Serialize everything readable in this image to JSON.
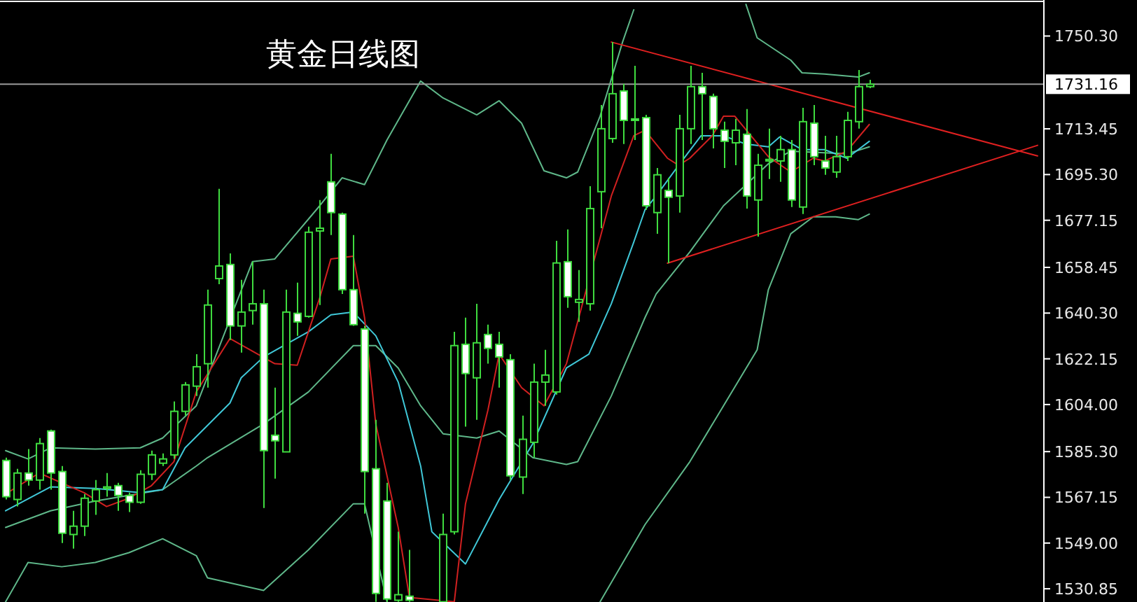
{
  "chart_data": {
    "type": "candlestick",
    "title": "黄金日线图",
    "color": "#3fdc3f",
    "tick_labels": "y",
    "categories": [
      null,
      null,
      null,
      null,
      null,
      null,
      null,
      null,
      null,
      null,
      null,
      null,
      null,
      null,
      null,
      null,
      null,
      null,
      null,
      null,
      null,
      null,
      null,
      null,
      null,
      null,
      null,
      null,
      null,
      null,
      null,
      null,
      null,
      null,
      null,
      null,
      null,
      null,
      null,
      null,
      null,
      null,
      null,
      null,
      null,
      null,
      null,
      null,
      null,
      null,
      null,
      null,
      null,
      null,
      null,
      null,
      null,
      null,
      null,
      null,
      null,
      null,
      null,
      null,
      null,
      null,
      null,
      null,
      null,
      null,
      null,
      null,
      null,
      null,
      null,
      null,
      null,
      null,
      null,
      null,
      null,
      null,
      null,
      null,
      null,
      null,
      null,
      null,
      null,
      null,
      null,
      null,
      null
    ],
    "ohlc": [
      [
        1581.8,
        1582.9,
        1566.3,
        1567.4
      ],
      [
        1566.3,
        1578.5,
        1563.5,
        1576.8
      ],
      [
        1576.8,
        1586.3,
        1571.8,
        1574.0
      ],
      [
        1574.0,
        1590.7,
        1570.2,
        1588.5
      ],
      [
        1593.5,
        1594.0,
        1570.2,
        1576.8
      ],
      [
        1577.4,
        1579.6,
        1549.0,
        1552.9
      ],
      [
        1552.4,
        1561.8,
        1546.8,
        1555.7
      ],
      [
        1555.7,
        1568.5,
        1551.8,
        1566.8
      ],
      [
        1565.7,
        1574.0,
        1560.2,
        1570.2
      ],
      [
        1570.7,
        1576.8,
        1567.4,
        1571.3
      ],
      [
        1571.8,
        1572.9,
        1561.8,
        1567.9
      ],
      [
        1567.9,
        1569.0,
        1561.3,
        1565.2
      ],
      [
        1565.2,
        1577.9,
        1564.6,
        1576.3
      ],
      [
        1576.3,
        1585.7,
        1574.0,
        1584.0
      ],
      [
        1580.7,
        1584.6,
        1579.6,
        1582.4
      ],
      [
        1584.0,
        1605.2,
        1582.4,
        1601.3
      ],
      [
        1601.3,
        1612.9,
        1599.6,
        1611.8
      ],
      [
        1611.3,
        1624.0,
        1607.4,
        1619.0
      ],
      [
        1620.2,
        1649.6,
        1610.7,
        1643.5
      ],
      [
        1654.0,
        1689.6,
        1651.8,
        1659.0
      ],
      [
        1659.6,
        1664.0,
        1629.6,
        1635.2
      ],
      [
        1635.2,
        1653.5,
        1624.6,
        1640.7
      ],
      [
        1641.3,
        1660.7,
        1635.7,
        1644.0
      ],
      [
        1644.0,
        1649.6,
        1562.9,
        1585.7
      ],
      [
        1591.8,
        1610.7,
        1574.6,
        1589.6
      ],
      [
        1585.2,
        1649.6,
        1585.2,
        1640.7
      ],
      [
        1640.2,
        1652.4,
        1631.3,
        1636.8
      ],
      [
        1639.0,
        1674.6,
        1638.5,
        1672.4
      ],
      [
        1672.9,
        1685.2,
        1643.5,
        1674.0
      ],
      [
        1692.4,
        1703.5,
        1671.3,
        1680.2
      ],
      [
        1679.6,
        1680.2,
        1647.9,
        1649.6
      ],
      [
        1649.6,
        1671.3,
        1635.2,
        1635.7
      ],
      [
        1634.0,
        1635.2,
        1560.7,
        1577.4
      ],
      [
        1578.5,
        1597.9,
        1525.7,
        1529.0
      ],
      [
        1565.7,
        1572.9,
        1525.7,
        1526.8
      ],
      [
        1526.3,
        1553.5,
        1525.7,
        1528.5
      ],
      [
        1527.9,
        1546.3,
        1525.7,
        1526.3
      ],
      null,
      null,
      [
        1525.7,
        1560.7,
        1525.7,
        1552.4
      ],
      [
        1553.5,
        1632.9,
        1552.4,
        1627.4
      ],
      [
        1627.9,
        1638.5,
        1595.2,
        1616.3
      ],
      [
        1614.6,
        1644.0,
        1597.9,
        1628.5
      ],
      [
        1631.8,
        1635.7,
        1620.2,
        1626.3
      ],
      [
        1627.9,
        1632.9,
        1610.7,
        1622.9
      ],
      [
        1621.8,
        1624.0,
        1574.0,
        1575.7
      ],
      [
        1575.2,
        1599.6,
        1568.5,
        1590.2
      ],
      [
        1589.0,
        1620.2,
        1582.9,
        1612.9
      ],
      [
        1612.9,
        1625.7,
        1603.5,
        1615.7
      ],
      [
        1609.0,
        1669.0,
        1607.9,
        1660.2
      ],
      [
        1660.7,
        1673.5,
        1642.4,
        1646.8
      ],
      [
        1644.6,
        1657.4,
        1636.8,
        1645.7
      ],
      [
        1644.0,
        1690.7,
        1641.3,
        1681.8
      ],
      [
        1688.5,
        1722.9,
        1674.0,
        1713.5
      ],
      [
        1709.6,
        1747.9,
        1707.9,
        1727.4
      ],
      [
        1728.5,
        1731.3,
        1707.4,
        1716.8
      ],
      [
        1717.4,
        1738.5,
        1709.0,
        1716.8
      ],
      [
        1717.9,
        1719.0,
        1681.3,
        1682.9
      ],
      [
        1680.2,
        1697.9,
        1671.8,
        1695.2
      ],
      [
        1689.0,
        1694.0,
        1660.1,
        1686.3
      ],
      [
        1686.8,
        1719.0,
        1680.2,
        1713.5
      ],
      [
        1713.5,
        1738.5,
        1707.4,
        1730.2
      ],
      [
        1730.2,
        1735.7,
        1709.0,
        1727.4
      ],
      [
        1726.3,
        1727.4,
        1705.7,
        1713.5
      ],
      [
        1712.9,
        1716.3,
        1697.9,
        1708.5
      ],
      [
        1707.9,
        1717.4,
        1699.0,
        1712.9
      ],
      [
        1711.3,
        1721.3,
        1681.8,
        1686.8
      ],
      [
        1685.2,
        1703.5,
        1670.7,
        1699.0
      ],
      [
        1700.7,
        1713.5,
        1693.5,
        1701.3
      ],
      [
        1700.7,
        1710.7,
        1692.4,
        1705.2
      ],
      [
        1705.2,
        1709.0,
        1682.4,
        1685.2
      ],
      [
        1682.4,
        1721.8,
        1679.6,
        1716.3
      ],
      [
        1715.7,
        1722.9,
        1699.0,
        1702.4
      ],
      [
        1700.7,
        1710.7,
        1695.2,
        1697.9
      ],
      [
        1696.3,
        1710.7,
        1694.0,
        1702.4
      ],
      [
        1702.4,
        1720.2,
        1700.7,
        1716.8
      ],
      [
        1716.3,
        1736.8,
        1713.5,
        1730.2
      ],
      [
        1730.2,
        1732.9,
        1729.6,
        1731.16
      ],
      null,
      null,
      null,
      null,
      null,
      null,
      null,
      null,
      null,
      null,
      null,
      null,
      null,
      null,
      null
    ],
    "series": [
      {
        "type": "line",
        "color": "#5fb88a",
        "values": [
          1585.7,
          null,
          1582.4,
          null,
          1586.8,
          null,
          null,
          null,
          1586.3,
          null,
          null,
          null,
          1586.8,
          null,
          1590.7,
          null,
          null,
          1603.5,
          null,
          null,
          null,
          null,
          1660.7,
          null,
          1661.8,
          null,
          null,
          null,
          1682.9,
          null,
          1694.0,
          null,
          1691.3,
          null,
          1709.0,
          null,
          null,
          1732.4,
          null,
          1725.7,
          null,
          null,
          1719.0,
          null,
          1724.6,
          null,
          1715.7,
          null,
          1696.8,
          null,
          1694.0,
          1696.3,
          null,
          1718.5,
          null,
          1747.9,
          1760.7,
          null,
          null,
          null,
          null,
          null,
          null,
          null,
          null,
          null,
          null,
          null,
          null,
          null,
          null,
          null,
          null,
          null,
          null,
          null,
          null,
          null,
          null,
          null,
          null,
          null,
          null,
          null,
          null,
          null,
          null,
          null,
          null,
          null,
          null,
          null,
          null
        ]
      },
      {
        "type": "line",
        "color": "#5fb88a",
        "values": [
          null,
          null,
          null,
          null,
          null,
          null,
          null,
          null,
          null,
          null,
          null,
          null,
          null,
          null,
          null,
          null,
          null,
          null,
          null,
          null,
          null,
          null,
          null,
          null,
          null,
          null,
          null,
          null,
          null,
          null,
          null,
          null,
          null,
          null,
          null,
          null,
          null,
          null,
          null,
          null,
          null,
          null,
          null,
          null,
          null,
          null,
          null,
          null,
          null,
          null,
          null,
          null,
          null,
          null,
          null,
          null,
          null,
          null,
          null,
          null,
          null,
          null,
          null,
          null,
          null,
          null,
          1762.9,
          1749.6,
          null,
          null,
          1740.7,
          1735.7,
          null,
          1735.2,
          null,
          null,
          1734.0,
          1735.7,
          null,
          null,
          null,
          null,
          null,
          null,
          null,
          null,
          null,
          null,
          null,
          null,
          null,
          null,
          null
        ]
      },
      {
        "type": "line",
        "color": "#5fb88a",
        "values": [
          1555.2,
          null,
          null,
          null,
          1561.8,
          null,
          null,
          null,
          1565.7,
          null,
          null,
          null,
          null,
          null,
          1570.2,
          null,
          null,
          1579.6,
          1582.9,
          null,
          null,
          null,
          null,
          1596.3,
          null,
          null,
          null,
          1609.0,
          null,
          null,
          null,
          1627.4,
          null,
          1627.4,
          null,
          1618.5,
          null,
          1603.5,
          null,
          1592.4,
          null,
          null,
          1590.7,
          null,
          1593.5,
          null,
          null,
          1582.9,
          null,
          null,
          1580.2,
          1581.3,
          null,
          null,
          1607.4,
          null,
          null,
          1638.5,
          1647.9,
          null,
          null,
          1664.6,
          null,
          null,
          1682.9,
          null,
          null,
          null,
          1699.6,
          null,
          1704.6,
          null,
          null,
          null,
          null,
          1703.5,
          null,
          1706.3,
          null,
          null,
          null,
          null,
          null,
          null,
          null,
          null,
          null,
          null,
          null,
          null,
          null,
          null,
          null
        ]
      },
      {
        "type": "line",
        "color": "#5fb88a",
        "values": [
          1525.7,
          null,
          1541.3,
          null,
          null,
          1539.6,
          null,
          null,
          1541.3,
          null,
          null,
          1545.2,
          null,
          null,
          1550.7,
          null,
          null,
          1544.0,
          1535.2,
          null,
          null,
          null,
          null,
          1530.2,
          null,
          null,
          null,
          1546.3,
          null,
          null,
          null,
          1564.6,
          1564.6,
          null,
          1525.7,
          null,
          null,
          null,
          null,
          null,
          null,
          null,
          null,
          null,
          null,
          null,
          null,
          null,
          null,
          null,
          null,
          null,
          null,
          null,
          null,
          null,
          null,
          null,
          null,
          null,
          null,
          null,
          null,
          null,
          null,
          null,
          null,
          null,
          null,
          null,
          null,
          null,
          null,
          null,
          null,
          null,
          null,
          null,
          null,
          null,
          null,
          null,
          null,
          null,
          null,
          null,
          null,
          null,
          null,
          null,
          null,
          null,
          null
        ]
      },
      {
        "type": "line",
        "color": "#5fb88a",
        "values": [
          null,
          null,
          null,
          null,
          null,
          null,
          null,
          null,
          null,
          null,
          null,
          null,
          null,
          null,
          null,
          null,
          null,
          null,
          null,
          null,
          null,
          null,
          null,
          null,
          null,
          null,
          null,
          null,
          null,
          null,
          null,
          null,
          null,
          null,
          null,
          null,
          null,
          null,
          null,
          null,
          null,
          null,
          null,
          null,
          null,
          null,
          null,
          null,
          null,
          null,
          null,
          null,
          null,
          1525.7,
          null,
          null,
          null,
          1556.3,
          null,
          null,
          null,
          1581.3,
          null,
          null,
          1603.5,
          null,
          null,
          1625.7,
          1649.6,
          null,
          1671.8,
          null,
          1678.5,
          null,
          1678.5,
          null,
          1677.4,
          1679.6,
          null,
          null,
          null,
          null,
          null,
          null,
          null,
          null,
          null,
          null,
          null,
          null,
          null,
          null,
          null
        ]
      },
      {
        "type": "line",
        "color": "#40c8d8",
        "values": [
          1561.8,
          null,
          null,
          null,
          1571.3,
          null,
          null,
          null,
          1570.7,
          null,
          null,
          null,
          1569.0,
          null,
          1570.2,
          null,
          1586.8,
          null,
          null,
          null,
          1604.6,
          1614.6,
          null,
          1622.9,
          null,
          null,
          null,
          1632.9,
          null,
          1639.6,
          null,
          1640.7,
          null,
          1631.3,
          null,
          1612.9,
          null,
          1579.6,
          1553.5,
          null,
          null,
          1540.7,
          null,
          null,
          1566.3,
          null,
          null,
          1588.5,
          null,
          null,
          1618.5,
          null,
          1624.0,
          null,
          1644.0,
          null,
          1668.5,
          1681.3,
          1686.8,
          null,
          1699.0,
          null,
          1710.7,
          null,
          1710.7,
          null,
          1707.4,
          null,
          1706.3,
          1710.2,
          null,
          1705.2,
          null,
          1705.2,
          null,
          1701.8,
          null,
          1708.5,
          null,
          null,
          null,
          null,
          null,
          null,
          null,
          null,
          null,
          null,
          null,
          null,
          null,
          null,
          null
        ]
      },
      {
        "type": "line",
        "color": "#d02020",
        "values": [
          1568.5,
          null,
          null,
          1576.8,
          null,
          1572.9,
          null,
          1569.0,
          null,
          1563.5,
          null,
          1566.8,
          null,
          1571.8,
          null,
          1581.3,
          null,
          1609.0,
          null,
          null,
          1630.2,
          null,
          null,
          null,
          1620.2,
          null,
          1619.6,
          null,
          1646.3,
          1661.8,
          null,
          1662.9,
          1638.5,
          1596.3,
          null,
          1555.2,
          1527.4,
          null,
          null,
          null,
          1525.7,
          1564.6,
          null,
          1601.8,
          1624.0,
          null,
          1610.7,
          null,
          1603.5,
          null,
          1620.2,
          null,
          null,
          null,
          1686.8,
          null,
          1710.7,
          1712.9,
          null,
          1701.8,
          1699.0,
          1701.8,
          null,
          1710.7,
          1718.5,
          1718.5,
          null,
          null,
          1702.4,
          null,
          1696.3,
          null,
          1701.8,
          1700.7,
          null,
          1704.6,
          null,
          1715.2,
          null,
          null,
          null,
          null,
          null,
          null,
          null,
          null,
          null,
          null,
          null,
          null,
          null,
          null,
          null
        ]
      },
      {
        "type": "line",
        "color": "#e02020",
        "values": [
          null,
          null,
          null,
          null,
          null,
          null,
          null,
          null,
          null,
          null,
          null,
          null,
          null,
          null,
          null,
          null,
          null,
          null,
          null,
          null,
          null,
          null,
          null,
          null,
          null,
          null,
          null,
          null,
          null,
          null,
          null,
          null,
          null,
          null,
          null,
          null,
          null,
          null,
          null,
          null,
          null,
          null,
          null,
          null,
          null,
          null,
          null,
          null,
          null,
          null,
          null,
          null,
          null,
          null,
          1747.9,
          null,
          null,
          null,
          null,
          null,
          null,
          null,
          null,
          null,
          null,
          null,
          null,
          null,
          null,
          null,
          null,
          null,
          null,
          null,
          null,
          null,
          null,
          null,
          null,
          null,
          null,
          null,
          null,
          null,
          null,
          null,
          null,
          null,
          null,
          null,
          null,
          null,
          1702.7
        ]
      },
      {
        "type": "line",
        "color": "#e02020",
        "values": [
          null,
          null,
          null,
          null,
          null,
          null,
          null,
          null,
          null,
          null,
          null,
          null,
          null,
          null,
          null,
          null,
          null,
          null,
          null,
          null,
          null,
          null,
          null,
          null,
          null,
          null,
          null,
          null,
          null,
          null,
          null,
          null,
          null,
          null,
          null,
          null,
          null,
          null,
          null,
          null,
          null,
          null,
          null,
          null,
          null,
          null,
          null,
          null,
          null,
          null,
          null,
          null,
          null,
          null,
          null,
          null,
          null,
          null,
          null,
          1660.1,
          null,
          null,
          null,
          null,
          null,
          null,
          null,
          null,
          null,
          null,
          null,
          null,
          null,
          null,
          null,
          null,
          null,
          null,
          null,
          null,
          null,
          null,
          null,
          null,
          null,
          null,
          null,
          null,
          null,
          null,
          null,
          null,
          1706.9
        ]
      }
    ],
    "ref_lines": [
      {
        "axis": "y",
        "value": 1731.16,
        "label": "1731.16",
        "color": "#9a9a9a"
      }
    ],
    "ylim": [
      1525.6,
      1764.6
    ],
    "yticks": [
      {
        "value": 1750.3,
        "label": "1750.30"
      },
      {
        "value": 1713.45,
        "label": "1713.45"
      },
      {
        "value": 1695.3,
        "label": "1695.30"
      },
      {
        "value": 1677.15,
        "label": "1677.15"
      },
      {
        "value": 1658.45,
        "label": "1658.45"
      },
      {
        "value": 1640.3,
        "label": "1640.30"
      },
      {
        "value": 1622.15,
        "label": "1622.15"
      },
      {
        "value": 1604,
        "label": "1604.00"
      },
      {
        "value": 1585.3,
        "label": "1585.30"
      },
      {
        "value": 1567.15,
        "label": "1567.15"
      },
      {
        "value": 1549,
        "label": "1549.00"
      },
      {
        "value": 1530.85,
        "label": "1530.85"
      }
    ]
  }
}
